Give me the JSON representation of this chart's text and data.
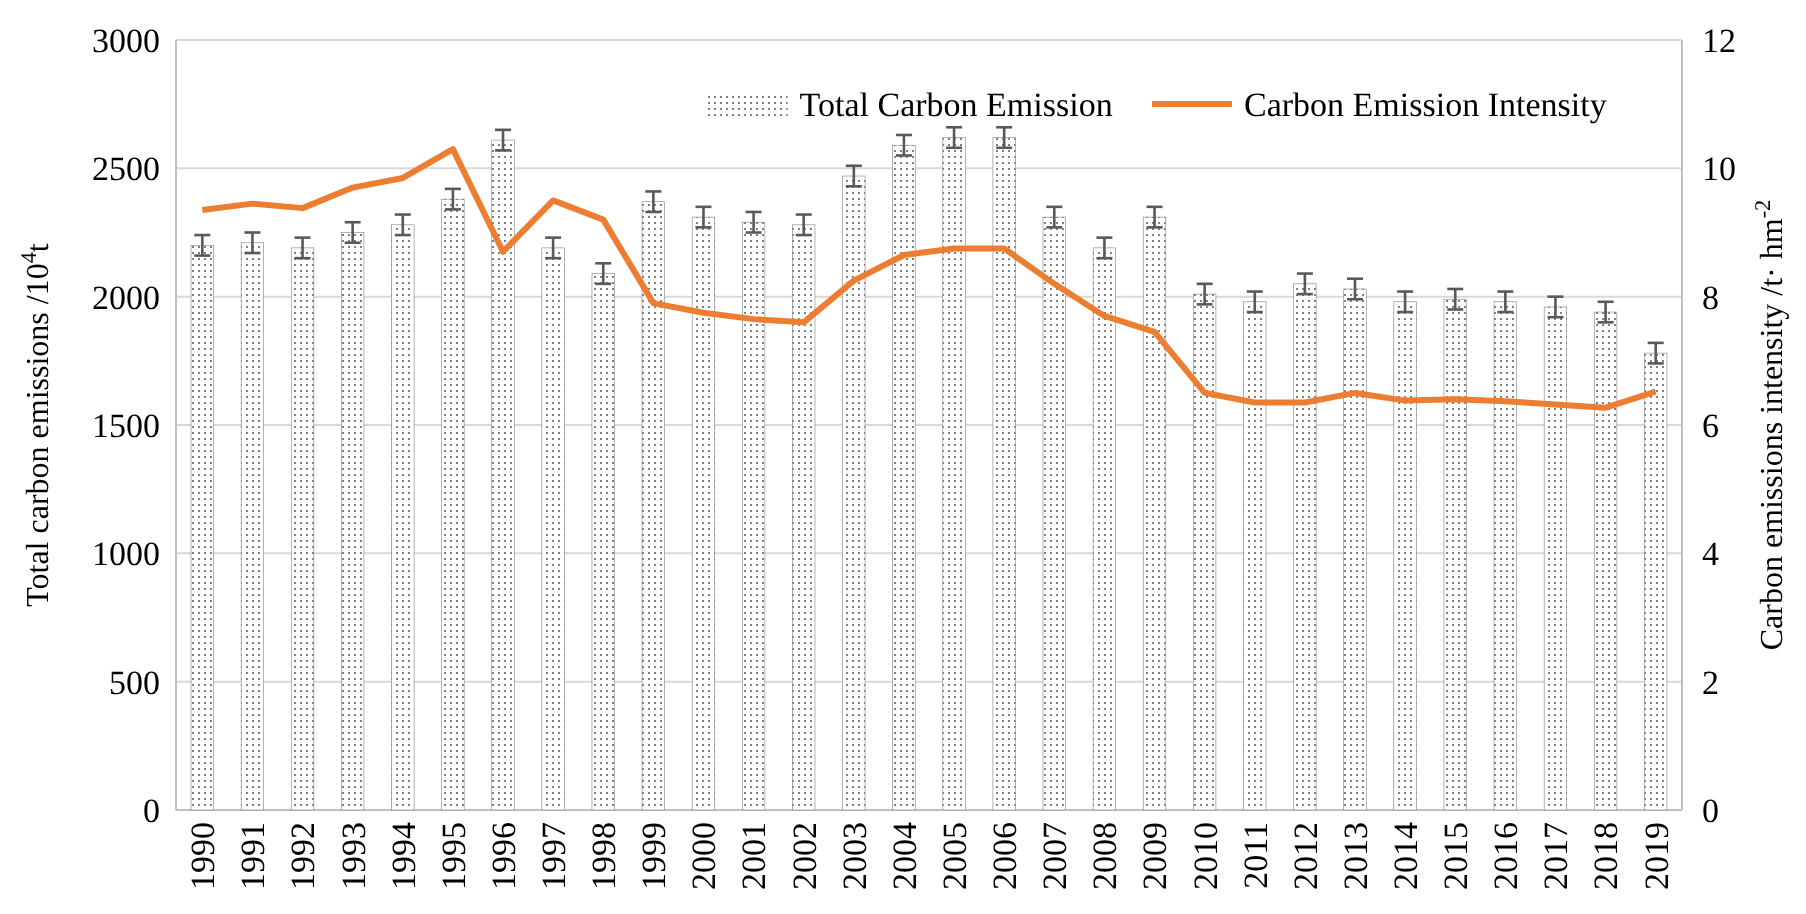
{
  "chart_data": {
    "type": "bar",
    "categories": [
      "1990",
      "1991",
      "1992",
      "1993",
      "1994",
      "1995",
      "1996",
      "1997",
      "1998",
      "1999",
      "2000",
      "2001",
      "2002",
      "2003",
      "2004",
      "2005",
      "2006",
      "2007",
      "2008",
      "2009",
      "2010",
      "2011",
      "2012",
      "2013",
      "2014",
      "2015",
      "2016",
      "2017",
      "2018",
      "2019"
    ],
    "ylabel": "Total carbon emissions /10$^{4}$t",
    "y2label": "Carbon emissions intensity /t· hm$^{-2}$",
    "ylim": [
      0,
      3000
    ],
    "yticks": [
      0,
      500,
      1000,
      1500,
      2000,
      2500,
      3000
    ],
    "y2lim": [
      0,
      12
    ],
    "y2ticks": [
      0,
      2,
      4,
      6,
      8,
      10,
      12
    ],
    "grid": "y",
    "legend": "top right",
    "series": [
      {
        "name": "Total Carbon Emission",
        "color": "#808080",
        "values": [
          2200,
          2210,
          2190,
          2250,
          2280,
          2380,
          2610,
          2190,
          2090,
          2370,
          2310,
          2290,
          2280,
          2470,
          2590,
          2620,
          2620,
          2310,
          2190,
          2310,
          2010,
          1980,
          2050,
          2030,
          1980,
          1990,
          1980,
          1960,
          1940,
          1780
        ],
        "errors": [
          40,
          40,
          40,
          40,
          40,
          40,
          40,
          40,
          40,
          40,
          40,
          40,
          40,
          40,
          40,
          40,
          40,
          40,
          40,
          40,
          40,
          40,
          40,
          40,
          40,
          40,
          40,
          40,
          40,
          40
        ]
      },
      {
        "name": "Carbon Emission Intensity",
        "type": "line",
        "axis": "y2",
        "color": "#ed7d31",
        "values": [
          9.35,
          9.45,
          9.38,
          9.7,
          9.85,
          10.3,
          8.7,
          9.5,
          9.2,
          7.9,
          7.75,
          7.65,
          7.6,
          8.25,
          8.65,
          8.75,
          8.75,
          8.2,
          7.7,
          7.45,
          6.5,
          6.35,
          6.35,
          6.5,
          6.38,
          6.4,
          6.37,
          6.32,
          6.27,
          6.52
        ]
      }
    ]
  }
}
